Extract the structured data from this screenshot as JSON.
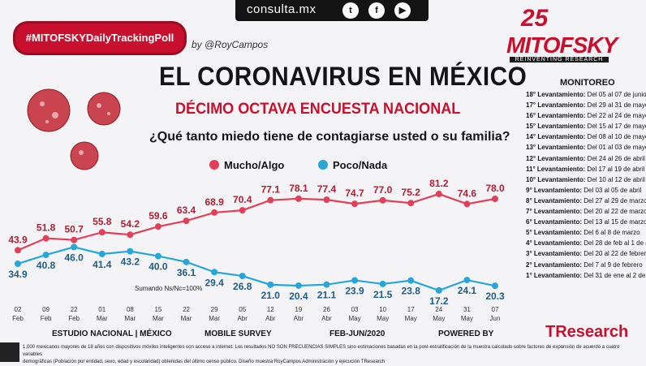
{
  "header": {
    "site": "consulta.mx",
    "social": [
      "twitter-icon",
      "facebook-icon",
      "youtube-icon"
    ],
    "hashtag": "#MITOFSKYDailyTrackingPoll",
    "byline": "by @RoyCampos",
    "logo_years": "25",
    "logo_name": "MITOFSKY",
    "logo_tagline": "REINVENTING RESEARCH"
  },
  "title": "EL CORONAVIRUS EN MÉXICO",
  "subtitle": "DÉCIMO OCTAVA ENCUESTA NACIONAL",
  "question": "¿Qué tanto miedo tiene de contagiarse usted o su familia?",
  "note": "Sumando Ns/Nc=100%",
  "colors": {
    "mucho": "#e0405a",
    "poco": "#29a6d8",
    "accent": "#c8102e"
  },
  "chart_data": {
    "type": "line",
    "x": [
      "02 Feb",
      "09 Feb",
      "22 Feb",
      "01 Mar",
      "08 Mar",
      "15 Mar",
      "22 Mar",
      "29 Mar",
      "05 Abr",
      "12 Abr",
      "19 Abr",
      "26 Abr",
      "03 May",
      "10 May",
      "17 May",
      "24 May",
      "31 May",
      "07 Jun"
    ],
    "series": [
      {
        "name": "Mucho/Algo",
        "values": [
          43.9,
          51.8,
          50.7,
          55.8,
          54.2,
          59.6,
          63.4,
          68.9,
          70.4,
          77.1,
          78.1,
          77.4,
          74.7,
          77.0,
          75.2,
          81.2,
          74.6,
          78.0
        ]
      },
      {
        "name": "Poco/Nada",
        "values": [
          34.9,
          40.8,
          46.0,
          41.4,
          43.2,
          40.0,
          36.1,
          29.4,
          26.8,
          21.0,
          20.4,
          21.1,
          23.9,
          21.5,
          23.8,
          17.2,
          24.1,
          20.3
        ]
      }
    ],
    "ylim": [
      0,
      100
    ],
    "grid": false,
    "legend": "top"
  },
  "monitor": {
    "title": "MONITOREO",
    "items": [
      {
        "n": "18° Levantamiento:",
        "d": "Del 05 al 07 de junio"
      },
      {
        "n": "17° Levantamiento:",
        "d": "Del 29 al 31 de mayo"
      },
      {
        "n": "16° Levantamiento:",
        "d": "Del 22 al 24 de mayo"
      },
      {
        "n": "15° Levantamiento:",
        "d": "Del 15 al 17 de mayo"
      },
      {
        "n": "14° Levantamiento:",
        "d": "Del 08 al 10 de mayo"
      },
      {
        "n": "13° Levantamiento:",
        "d": "Del 01 al 03 de mayo"
      },
      {
        "n": "12° Levantamiento:",
        "d": "Del 24 al 26 de abril"
      },
      {
        "n": "11° Levantamiento:",
        "d": "Del 17 al 19 de abril"
      },
      {
        "n": "10° Levantamiento:",
        "d": "Del 10 al 12 de abril"
      },
      {
        "n": "9° Levantamiento:",
        "d": "Del 03 al 05 de abril"
      },
      {
        "n": "8° Levantamiento:",
        "d": "Del 27 al 29 de marzo"
      },
      {
        "n": "7° Levantamiento:",
        "d": "Del 20 al 22 de marzo"
      },
      {
        "n": "6° Levantamiento:",
        "d": "Del 13 al 15 de marzo"
      },
      {
        "n": "5° Levantamiento:",
        "d": "Del 6 al 8 de marzo"
      },
      {
        "n": "4° Levantamiento:",
        "d": "Del 28 de feb al 1 de mar"
      },
      {
        "n": "3° Levantamiento:",
        "d": "Del 20 al 22 de febrero"
      },
      {
        "n": "2° Levantamiento:",
        "d": "Del 7 al 9 de febrero"
      },
      {
        "n": "1° Levantamiento:",
        "d": "Del 31 de ene al 2 de feb"
      }
    ]
  },
  "footer": {
    "estudio": "ESTUDIO NACIONAL | MÉXICO",
    "mobile": "MOBILE SURVEY",
    "period": "FEB-JUN/2020",
    "powered": "POWERED BY",
    "tresearch": "TResearch",
    "fine1": "1,000 mexicanos mayores de 18 años con dispositivos móviles inteligentes con acceso a internet. Los resultados NO SON FRECUENCIAS SIMPLES sino estimaciones basadas en la post-estratificación de la muestra calculado sobre factores de expansión de acuerdo a cuatro variables",
    "fine2": "demográficas (Población por entidad, sexo, edad y escolaridad) obtenidas del último censo público. Diseño muestra RoyCampos Administración y ejecución TResearch"
  }
}
